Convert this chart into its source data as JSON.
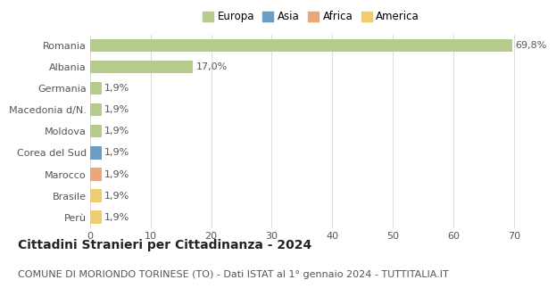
{
  "categories": [
    "Romania",
    "Albania",
    "Germania",
    "Macedonia d/N.",
    "Moldova",
    "Corea del Sud",
    "Marocco",
    "Brasile",
    "Perù"
  ],
  "values": [
    69.8,
    17.0,
    1.9,
    1.9,
    1.9,
    1.9,
    1.9,
    1.9,
    1.9
  ],
  "continents": [
    "Europa",
    "Europa",
    "Europa",
    "Europa",
    "Europa",
    "Asia",
    "Africa",
    "America",
    "America"
  ],
  "labels": [
    "69,8%",
    "17,0%",
    "1,9%",
    "1,9%",
    "1,9%",
    "1,9%",
    "1,9%",
    "1,9%",
    "1,9%"
  ],
  "colors": {
    "Europa": "#b5cc8e",
    "Asia": "#6a9ec5",
    "Africa": "#e8a87c",
    "America": "#f0cc6e"
  },
  "legend_items": [
    "Europa",
    "Asia",
    "Africa",
    "America"
  ],
  "xlim": [
    0,
    73
  ],
  "xticks": [
    0,
    10,
    20,
    30,
    40,
    50,
    60,
    70
  ],
  "title": "Cittadini Stranieri per Cittadinanza - 2024",
  "subtitle": "COMUNE DI MORIONDO TORINESE (TO) - Dati ISTAT al 1° gennaio 2024 - TUTTITALIA.IT",
  "title_fontsize": 10,
  "subtitle_fontsize": 8,
  "grid_color": "#dddddd",
  "bg_color": "#ffffff",
  "bar_height": 0.6,
  "label_fontsize": 8,
  "tick_fontsize": 8,
  "legend_fontsize": 8.5
}
